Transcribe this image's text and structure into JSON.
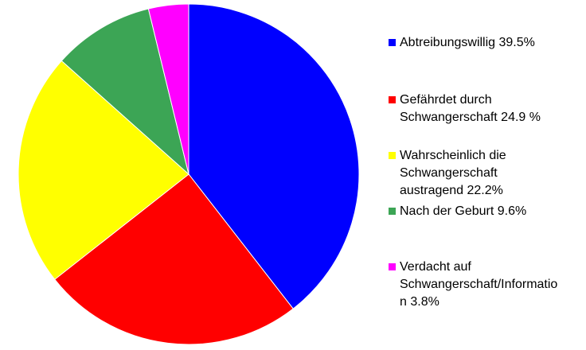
{
  "chart_data": {
    "type": "pie",
    "title": "",
    "legend_position": "right",
    "start": "top",
    "direction": "clockwise",
    "slices": [
      {
        "label_lines": [
          "Abtreibungswillig 39.5%"
        ],
        "value": 39.5,
        "color": "#0000ff"
      },
      {
        "label_lines": [
          "Gefährdet durch",
          "Schwangerschaft 24.9 %"
        ],
        "value": 24.9,
        "color": "#ff0000"
      },
      {
        "label_lines": [
          "Wahrscheinlich die",
          "Schwangerschaft",
          "austragend 22.2%"
        ],
        "value": 22.2,
        "color": "#ffff00"
      },
      {
        "label_lines": [
          "Nach der Geburt 9.6%"
        ],
        "value": 9.6,
        "color": "#3ca555"
      },
      {
        "label_lines": [
          "Verdacht auf",
          "Schwangerschaft/Informatio",
          "n 3.8%"
        ],
        "value": 3.8,
        "color": "#ff00ff"
      }
    ]
  }
}
